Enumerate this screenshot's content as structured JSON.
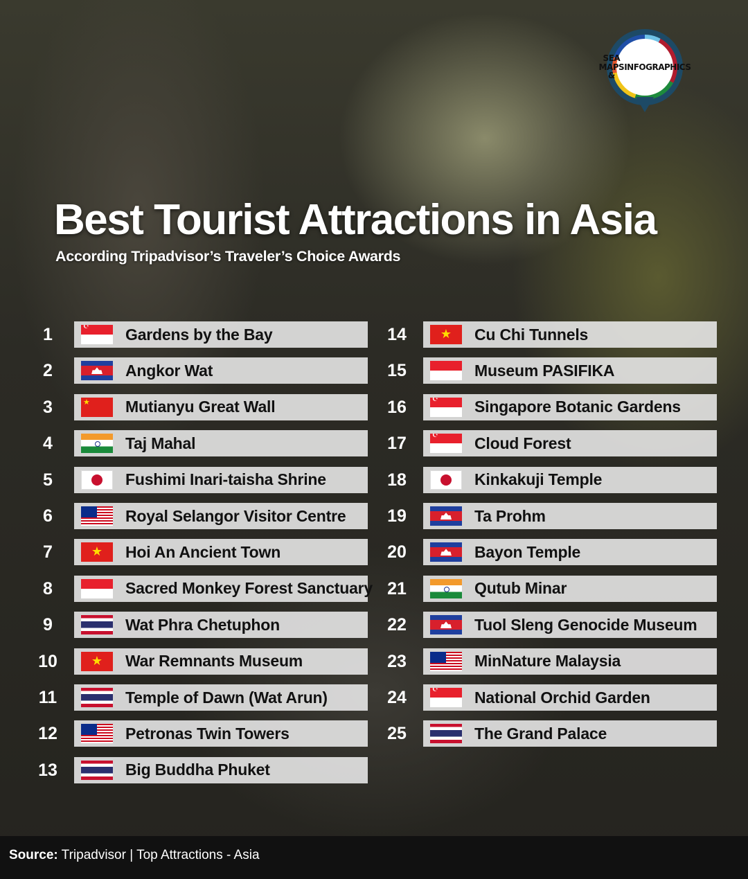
{
  "logo": {
    "line1": "SEA MAPS &",
    "line2": "INFOGRAPHICS"
  },
  "title": "Best Tourist Attractions in Asia",
  "subtitle": "According Tripadvisor’s Traveler’s Choice Awards",
  "items": [
    {
      "rank": "1",
      "name": "Gardens by the Bay",
      "flag": "SG"
    },
    {
      "rank": "2",
      "name": "Angkor Wat",
      "flag": "KH"
    },
    {
      "rank": "3",
      "name": "Mutianyu Great Wall",
      "flag": "CN"
    },
    {
      "rank": "4",
      "name": "Taj Mahal",
      "flag": "IN"
    },
    {
      "rank": "5",
      "name": "Fushimi Inari-taisha Shrine",
      "flag": "JP"
    },
    {
      "rank": "6",
      "name": "Royal Selangor Visitor Centre",
      "flag": "MY"
    },
    {
      "rank": "7",
      "name": "Hoi An Ancient Town",
      "flag": "VN"
    },
    {
      "rank": "8",
      "name": "Sacred Monkey Forest Sanctuary",
      "flag": "ID"
    },
    {
      "rank": "9",
      "name": "Wat Phra Chetuphon",
      "flag": "TH"
    },
    {
      "rank": "10",
      "name": "War Remnants Museum",
      "flag": "VN"
    },
    {
      "rank": "11",
      "name": "Temple of Dawn (Wat Arun)",
      "flag": "TH"
    },
    {
      "rank": "12",
      "name": "Petronas Twin Towers",
      "flag": "MY"
    },
    {
      "rank": "13",
      "name": "Big Buddha Phuket",
      "flag": "TH"
    },
    {
      "rank": "14",
      "name": "Cu Chi Tunnels",
      "flag": "VN"
    },
    {
      "rank": "15",
      "name": "Museum PASIFIKA",
      "flag": "ID"
    },
    {
      "rank": "16",
      "name": "Singapore Botanic Gardens",
      "flag": "SG"
    },
    {
      "rank": "17",
      "name": "Cloud Forest",
      "flag": "SG"
    },
    {
      "rank": "18",
      "name": "Kinkakuji Temple",
      "flag": "JP"
    },
    {
      "rank": "19",
      "name": "Ta Prohm",
      "flag": "KH"
    },
    {
      "rank": "20",
      "name": "Bayon Temple",
      "flag": "KH"
    },
    {
      "rank": "21",
      "name": "Qutub Minar",
      "flag": "IN"
    },
    {
      "rank": "22",
      "name": "Tuol Sleng Genocide Museum",
      "flag": "KH"
    },
    {
      "rank": "23",
      "name": "MinNature Malaysia",
      "flag": "MY"
    },
    {
      "rank": "24",
      "name": "National Orchid Garden",
      "flag": "SG"
    },
    {
      "rank": "25",
      "name": "The Grand Palace",
      "flag": "TH"
    }
  ],
  "footer": {
    "label": "Source:",
    "text": " Tripadvisor | Top Attractions - Asia"
  }
}
